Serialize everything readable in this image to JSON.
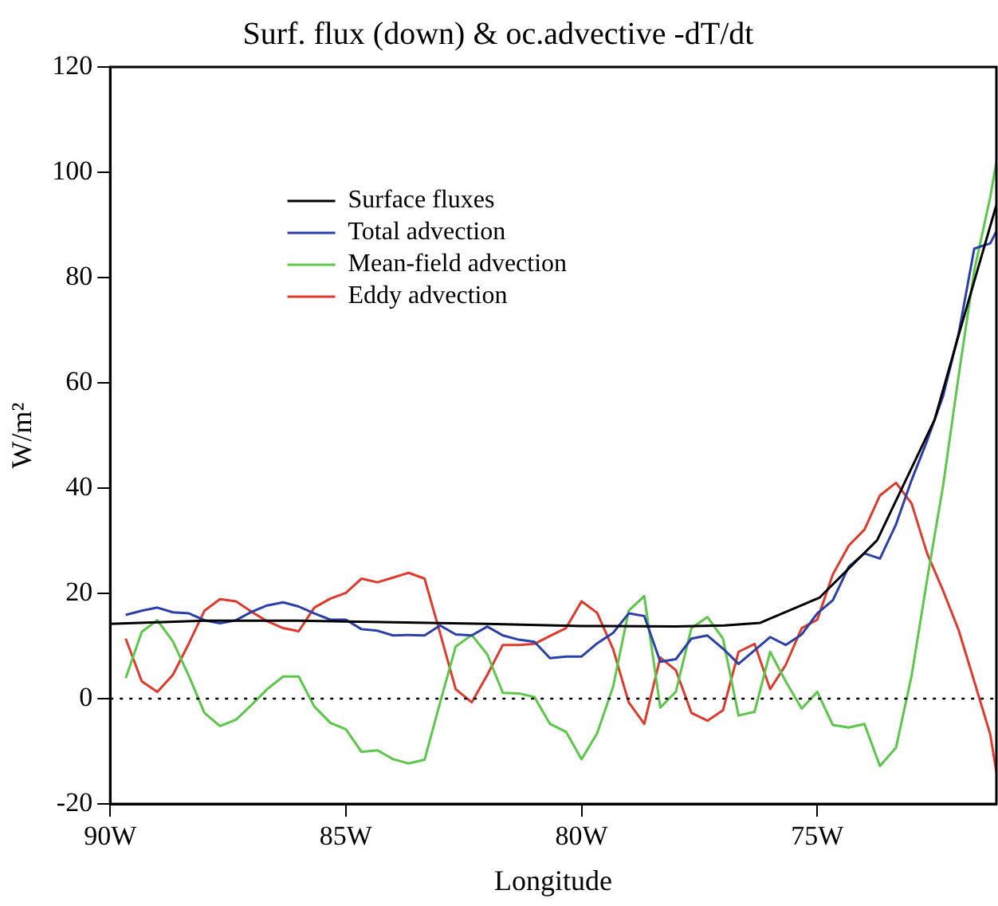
{
  "chart_data": {
    "type": "line",
    "title": "Surf. flux (down) & oc.advective -dT/dt",
    "xlabel": "Longitude",
    "ylabel": "W/m²",
    "x": [
      -89.67,
      -89.33,
      -89,
      -88.67,
      -88.33,
      -88,
      -87.67,
      -87.33,
      -87,
      -86.67,
      -86.33,
      -86,
      -85.67,
      -85.33,
      -85,
      -84.67,
      -84.33,
      -84,
      -83.67,
      -83.33,
      -83,
      -82.67,
      -82.33,
      -82,
      -81.67,
      -81.33,
      -81,
      -80.67,
      -80.33,
      -80,
      -79.67,
      -79.33,
      -79,
      -78.67,
      -78.33,
      -78,
      -77.67,
      -77.33,
      -77,
      -76.67,
      -76.33,
      -76,
      -75.67,
      -75.33,
      -75,
      -74.67,
      -74.33,
      -74,
      -73.67,
      -73.33,
      -73,
      -72.67,
      -72.33,
      -72,
      -71.67,
      -71.33,
      -71.2
    ],
    "xlim": [
      -90,
      -71.2
    ],
    "xticks": [
      {
        "value": -90,
        "label": "90W"
      },
      {
        "value": -85,
        "label": "85W"
      },
      {
        "value": -80,
        "label": "80W"
      },
      {
        "value": -75,
        "label": "75W"
      }
    ],
    "ylim": [
      -20,
      120
    ],
    "yticks": [
      -20,
      0,
      20,
      40,
      60,
      80,
      100,
      120
    ],
    "grid": false,
    "legend": "top left",
    "line_style": "solid",
    "marker": "none",
    "ref_lines": [
      {
        "axis": "y",
        "value": 0,
        "color": "#000000",
        "line_style": "dotted"
      }
    ],
    "series": [
      {
        "name": "Surface fluxes",
        "color": "#000000",
        "x": [
          -90,
          -88,
          -86,
          -84,
          -82,
          -80,
          -78,
          -76.97,
          -76.21,
          -74.95,
          -73.73,
          -72.51,
          -71.99,
          -71.2
        ],
        "values": [
          14.2,
          14.8,
          14.8,
          14.5,
          14.2,
          13.8,
          13.7,
          13.9,
          14.4,
          19.2,
          30.1,
          53,
          69.4,
          93.8
        ]
      },
      {
        "name": "Total advection",
        "color": "#2b3fa8",
        "values": [
          15.9,
          16.7,
          17.3,
          16.4,
          16.2,
          14.9,
          14.3,
          14.9,
          16.5,
          17.7,
          18.3,
          17.5,
          16.2,
          15,
          15,
          13.2,
          12.9,
          12,
          12.1,
          12,
          13.9,
          12.2,
          12,
          13.7,
          12,
          11.2,
          10.8,
          7.7,
          8,
          8,
          10.5,
          12.5,
          16.2,
          15.7,
          7,
          7.5,
          11.4,
          12,
          9.5,
          6.6,
          9.2,
          11.7,
          10.2,
          12.2,
          16.2,
          18.7,
          25.1,
          27.6,
          26.6,
          33.1,
          41.5,
          49,
          57.5,
          69.4,
          85.5,
          86.5,
          88.8
        ]
      },
      {
        "name": "Mean-field advection",
        "color": "#5cc84a",
        "values": [
          3.9,
          12.7,
          14.9,
          10.9,
          4.3,
          -2.7,
          -5.2,
          -4,
          -1.2,
          1.8,
          4.2,
          4.2,
          -1.5,
          -4.6,
          -5.8,
          -10.1,
          -9.8,
          -11.5,
          -12.3,
          -11.6,
          -0.7,
          9.9,
          12.1,
          8.4,
          1.1,
          1,
          0.3,
          -4.8,
          -6.3,
          -11.5,
          -6.6,
          2.3,
          16.7,
          19.5,
          -1.7,
          1.3,
          13.4,
          15.5,
          11.4,
          -3.2,
          -2.5,
          8.9,
          3.3,
          -1.9,
          1.3,
          -5,
          -5.5,
          -4.8,
          -12.8,
          -9.3,
          4.3,
          22.6,
          40.5,
          61.4,
          81.3,
          95.3,
          102
        ]
      },
      {
        "name": "Eddy advection",
        "color": "#e03a2c",
        "values": [
          11.4,
          3.3,
          1.3,
          4.5,
          10.5,
          16.7,
          18.9,
          18.5,
          16.5,
          14.7,
          13.4,
          12.8,
          17.3,
          19,
          20.1,
          22.8,
          22.1,
          23,
          23.9,
          22.8,
          12.4,
          1.8,
          -0.7,
          4.5,
          10.2,
          10.2,
          10.4,
          11.9,
          13.4,
          18.5,
          16.3,
          9.4,
          -0.7,
          -4.8,
          7.8,
          5.4,
          -2.7,
          -4.2,
          -2.2,
          8.9,
          10.4,
          1.8,
          6.4,
          13.4,
          15,
          23.6,
          29.1,
          32.1,
          38.6,
          41,
          37.1,
          27.6,
          20.5,
          13,
          3.3,
          -6.8,
          -14
        ]
      }
    ]
  }
}
